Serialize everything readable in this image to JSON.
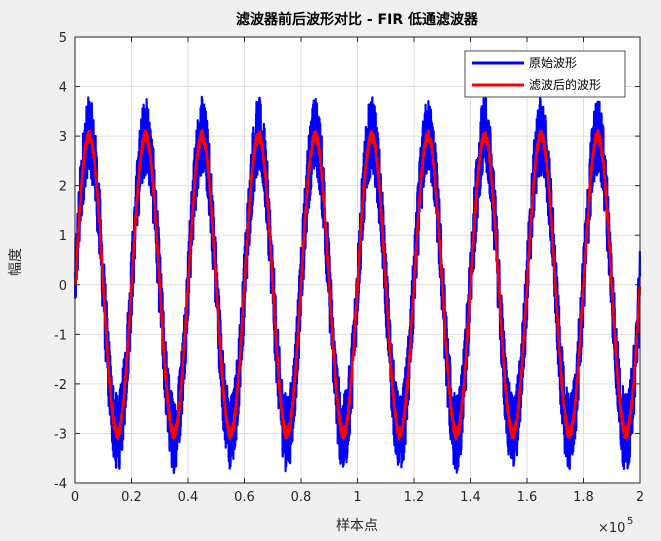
{
  "chart_data": {
    "type": "line",
    "title": "滤波器前后波形对比 - FIR 低通滤波器",
    "xlabel": "样本点",
    "ylabel": "幅度",
    "x_exponent_label": "×10",
    "x_exponent_power": "5",
    "xlim": [
      0,
      2
    ],
    "ylim": [
      -4,
      5
    ],
    "x_ticks": [
      "0",
      "0.2",
      "0.4",
      "0.6",
      "0.8",
      "1",
      "1.2",
      "1.4",
      "1.6",
      "1.8",
      "2"
    ],
    "y_ticks": [
      "5",
      "4",
      "3",
      "2",
      "1",
      "0",
      "-1",
      "-2",
      "-3",
      "-4"
    ],
    "grid": true,
    "legend_position": "top-right",
    "periods": 10,
    "series": [
      {
        "name": "原始波形",
        "color": "#0000ff",
        "amplitude": 3,
        "noise_amplitude": 0.8,
        "description_values": {
          "peak_max": 4.1,
          "trough_min": -3.9
        }
      },
      {
        "name": "滤波后的波形",
        "color": "#ff0000",
        "amplitude": 3,
        "peak_values": [
          3.2,
          3.2,
          3.15,
          3.2,
          3.2,
          3.25,
          3.2,
          3.2,
          3.2,
          3.2
        ],
        "trough_values": [
          -3.2,
          -3.2,
          -3.2,
          -3.2,
          -3.15,
          -3.2,
          -3.2,
          -3.15,
          -3.2,
          -3.2
        ]
      }
    ]
  }
}
